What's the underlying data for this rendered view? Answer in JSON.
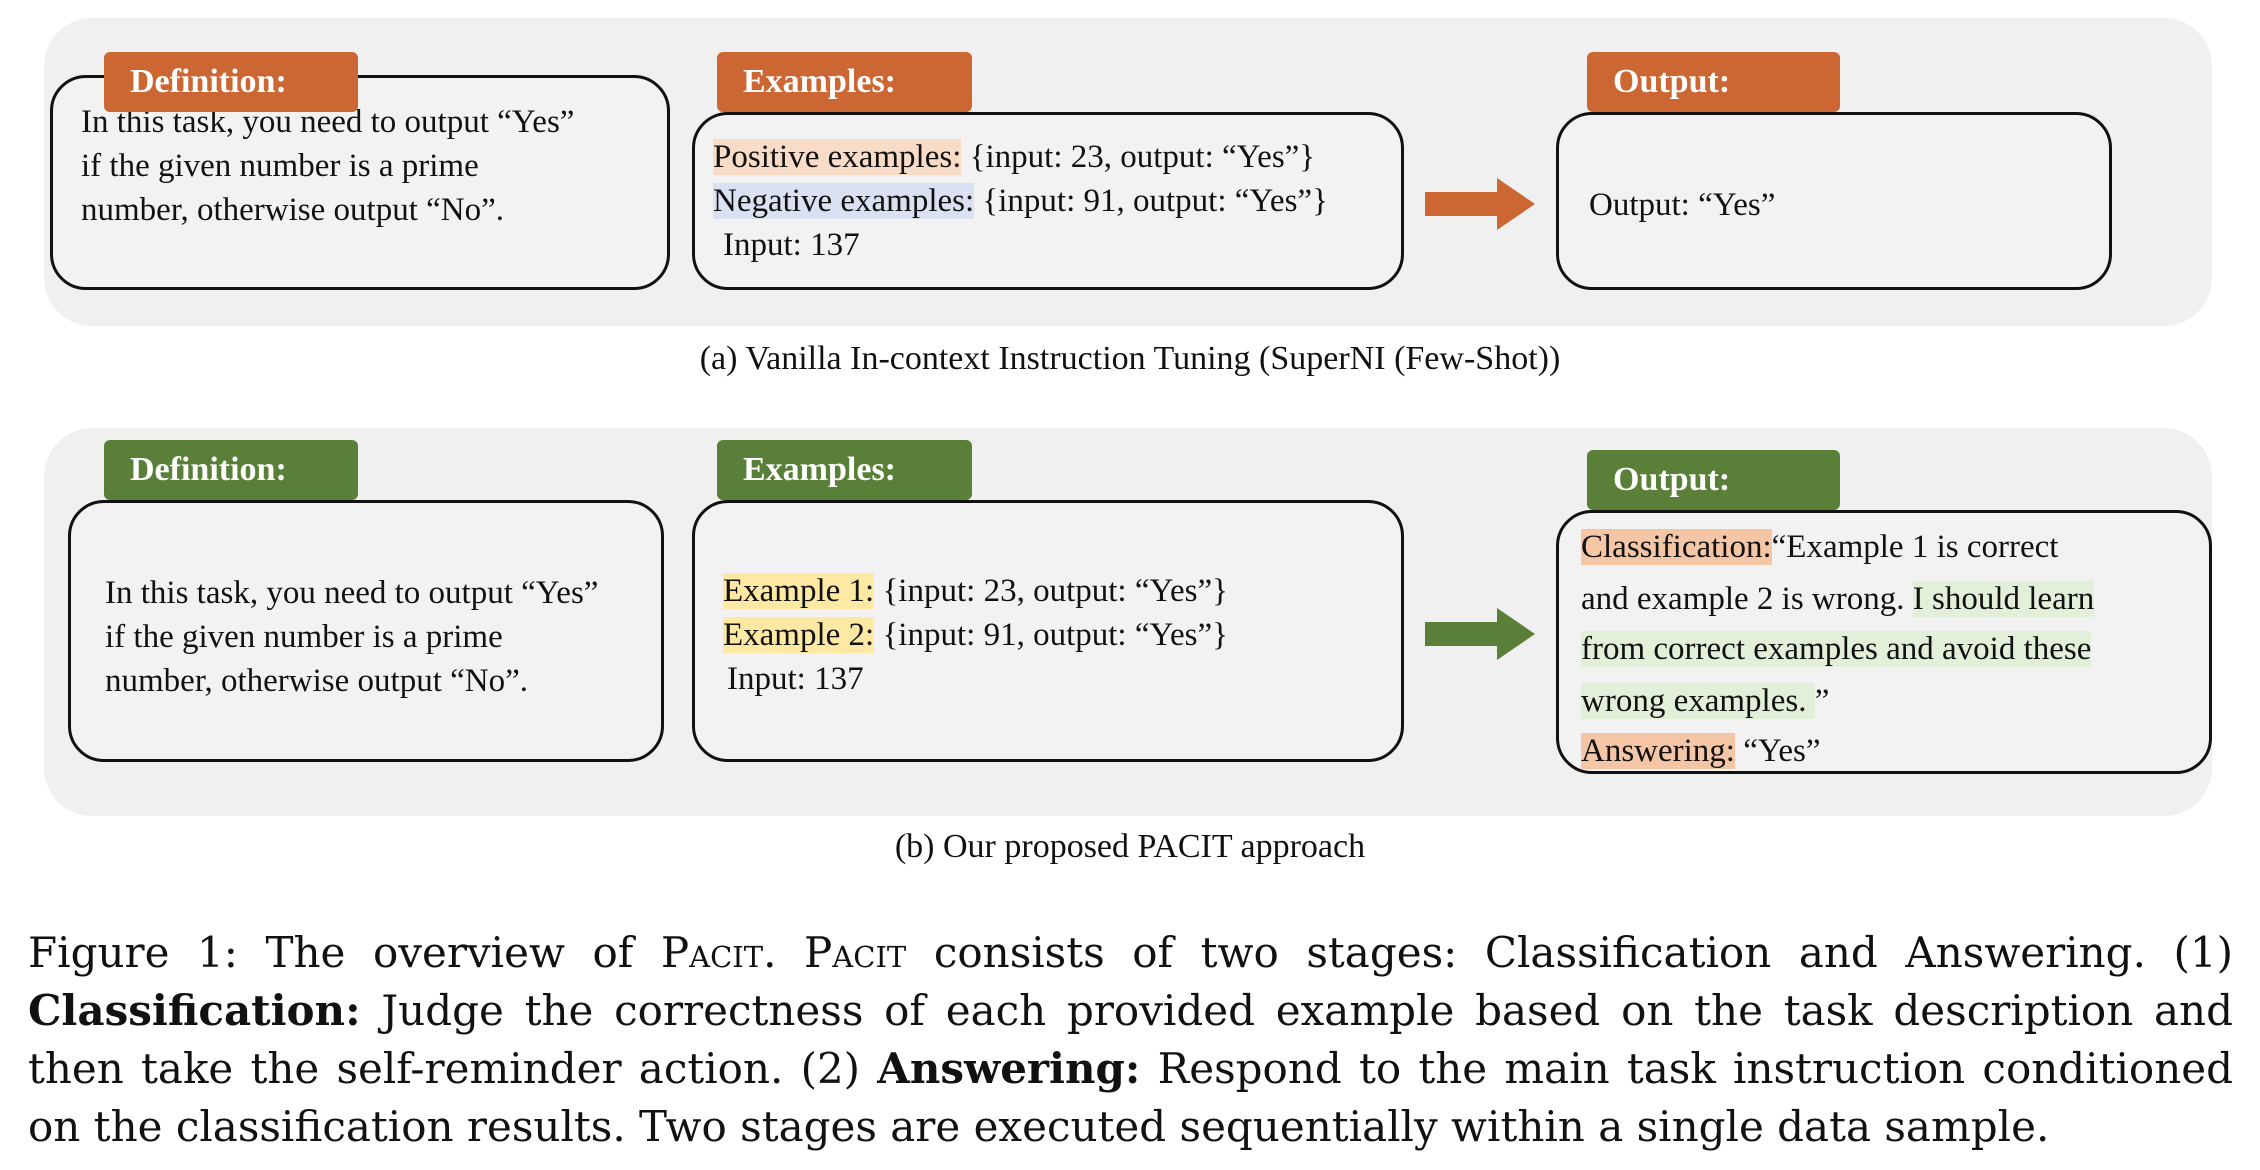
{
  "colors": {
    "orange": "#cc6633",
    "green": "#5a7f38"
  },
  "panel_a": {
    "definition_tag": "Definition:",
    "definition_lines": [
      "In this task, you need to output “Yes”",
      "if the given number is a prime",
      "number, otherwise output “No”."
    ],
    "examples_tag": "Examples:",
    "pos_label": "Positive examples:",
    "pos_rest": " {input: 23, output: “Yes”}",
    "neg_label": "Negative examples:",
    "neg_rest": " {input: 91, output: “Yes”}",
    "input_line": "Input: 137",
    "output_tag": "Output:",
    "output_text": "Output: “Yes”",
    "caption": "(a) Vanilla In-context Instruction Tuning (SuperNI (Few-Shot))"
  },
  "panel_b": {
    "definition_tag": "Definition:",
    "definition_lines": [
      "In this task, you need to output “Yes”",
      "if the given number is a prime",
      "number, otherwise output “No”."
    ],
    "examples_tag": "Examples:",
    "ex1_label": "Example 1:",
    "ex1_rest": " {input: 23, output: “Yes”}",
    "ex2_label": "Example 2:",
    "ex2_rest": " {input: 91, output: “Yes”}",
    "input_line": "Input: 137",
    "output_tag": "Output:",
    "class_label": "Classification:",
    "class_rest": "“Example 1 is correct",
    "line2_plain": "and example 2 is wrong. ",
    "line2_green": "I should learn",
    "line3_green": "from correct examples and avoid these",
    "line4_green": "wrong examples. ",
    "line4_end": "”",
    "ans_label": "Answering:",
    "ans_rest": " “Yes”",
    "caption": "(b) Our proposed PACIT approach"
  },
  "figure_caption": {
    "prefix": "Figure 1:  The overview of ",
    "name1": "Pacit",
    "mid1": ".  ",
    "name2": "Pacit",
    "mid2": " consists of two stages:  Classification and Answering.  (1) ",
    "bold1": "Classification:",
    "mid3": " Judge the correctness of each provided example based on the task description and then take the self-reminder action.  (2) ",
    "bold2": "Answering:",
    "suffix": " Respond to the main task instruction conditioned on the classification results.  Two stages are executed sequentially within a single data sample."
  }
}
